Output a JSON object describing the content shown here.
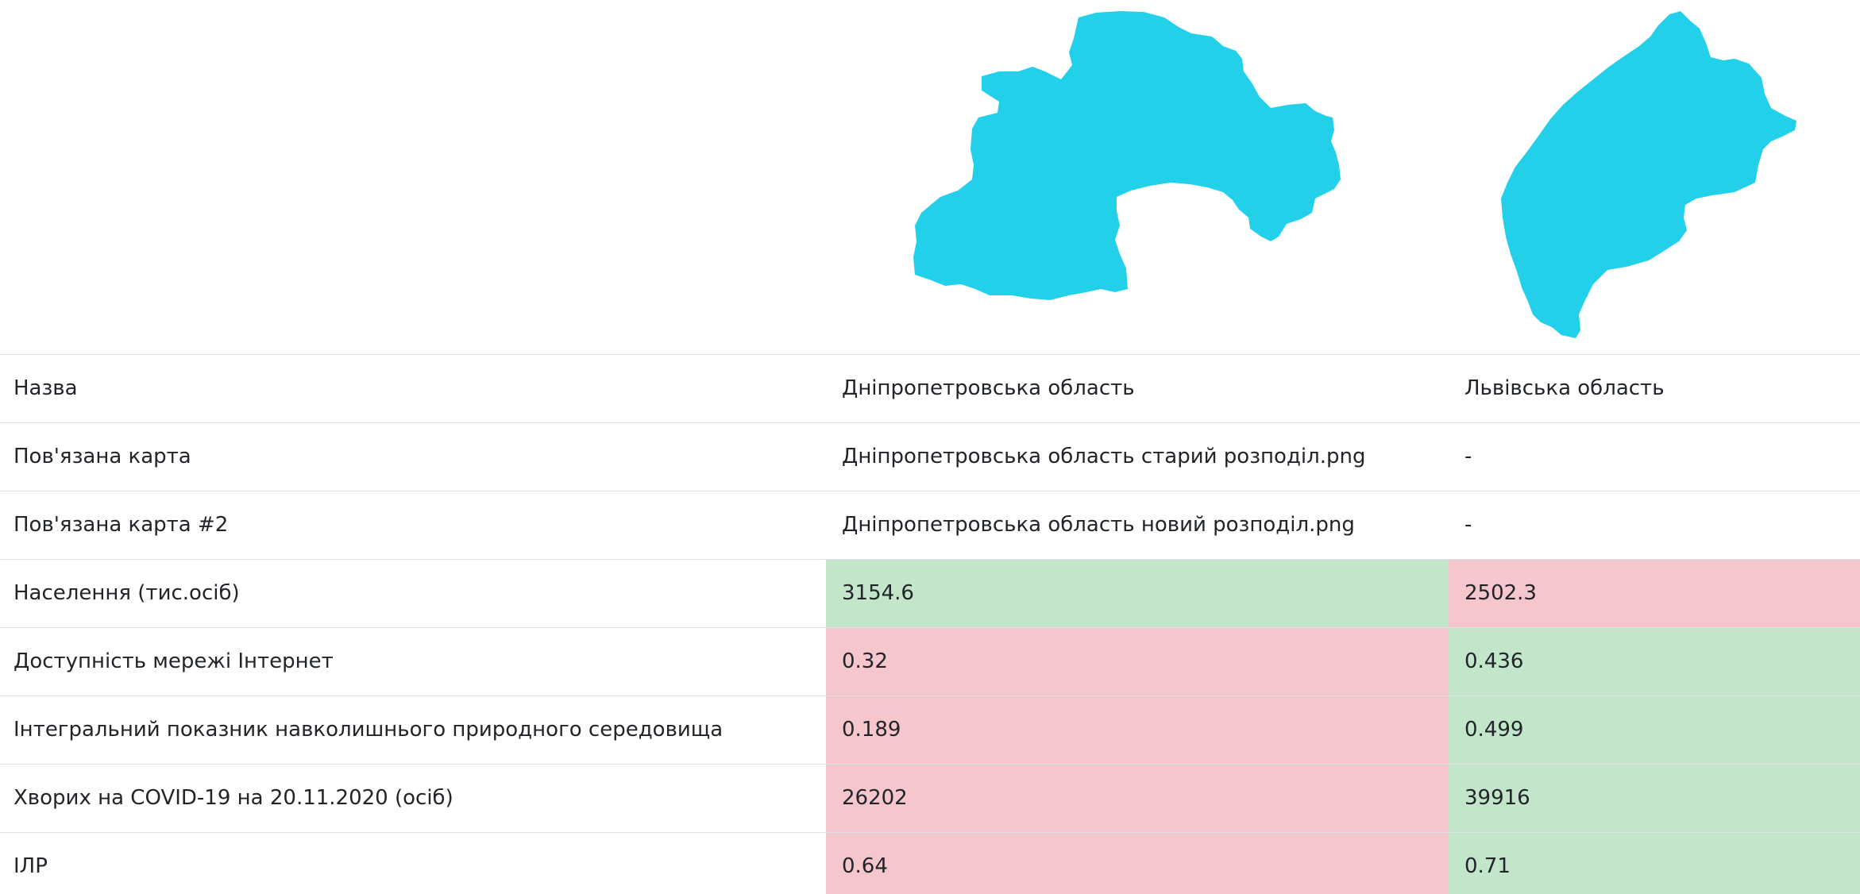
{
  "maps": [
    {
      "name": "Дніпропетровська область",
      "color": "#22d0ea",
      "icon": "region-shape-dnipropetrovsk"
    },
    {
      "name": "Львівська область",
      "color": "#22d0ea",
      "icon": "region-shape-lviv"
    }
  ],
  "colors": {
    "better": "#c3e6cb",
    "worse": "#f5c6cb",
    "border": "#dee2e6"
  },
  "table": {
    "rows": [
      {
        "label": "Назва",
        "a": "Дніпропетровська область",
        "b": "Львівська область",
        "a_status": "",
        "b_status": ""
      },
      {
        "label": "Пов'язана карта",
        "a": "Дніпропетровська область старий розподіл.png",
        "b": "-",
        "a_status": "",
        "b_status": ""
      },
      {
        "label": "Пов'язана карта #2",
        "a": "Дніпропетровська область новий розподіл.png",
        "b": "-",
        "a_status": "",
        "b_status": ""
      },
      {
        "label": "Населення (тис.осіб)",
        "a": "3154.6",
        "b": "2502.3",
        "a_status": "good",
        "b_status": "bad"
      },
      {
        "label": "Доступність мережі Інтернет",
        "a": "0.32",
        "b": "0.436",
        "a_status": "bad",
        "b_status": "good"
      },
      {
        "label": "Інтегральний показник навколишнього природного середовища",
        "a": "0.189",
        "b": "0.499",
        "a_status": "bad",
        "b_status": "good"
      },
      {
        "label": "Хворих на COVID-19 на 20.11.2020 (осіб)",
        "a": "26202",
        "b": "39916",
        "a_status": "bad",
        "b_status": "good"
      },
      {
        "label": "ІЛР",
        "a": "0.64",
        "b": "0.71",
        "a_status": "bad",
        "b_status": "good"
      }
    ]
  }
}
